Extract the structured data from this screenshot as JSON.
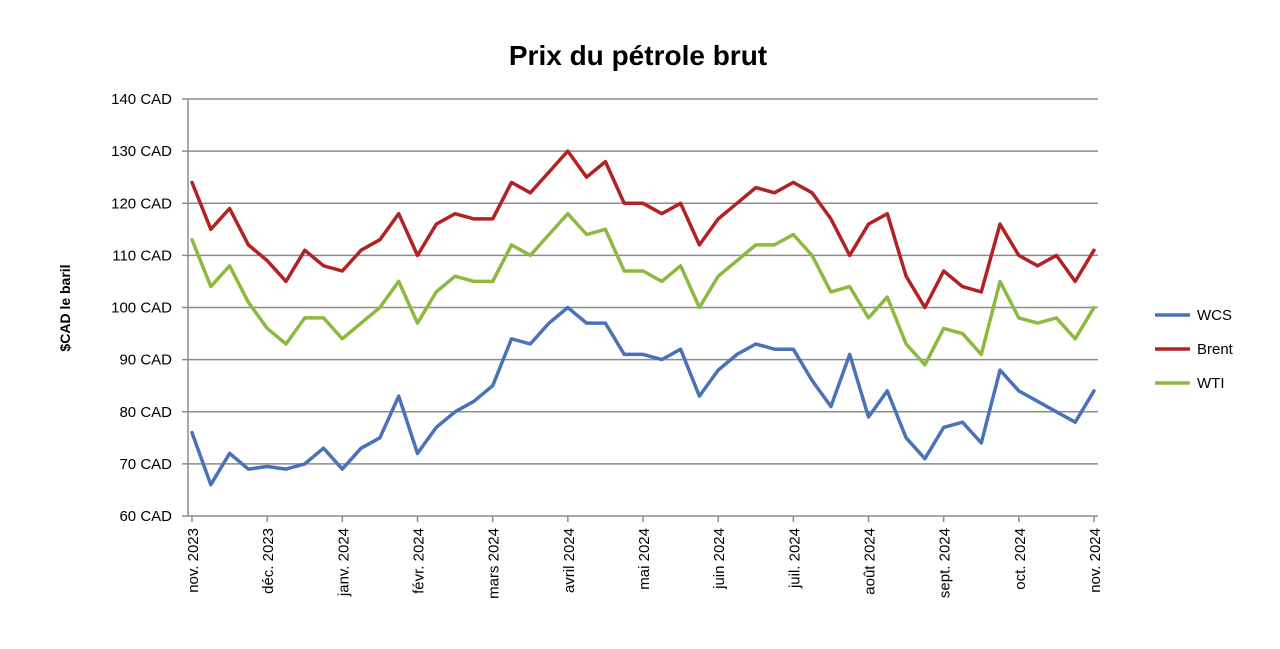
{
  "chart_data": {
    "type": "line",
    "title": "Prix du pétrole brut",
    "ylabel": "$CAD le baril",
    "xlabel": "",
    "ylim": [
      60,
      140
    ],
    "y_ticks": [
      "60 CAD",
      "70 CAD",
      "80 CAD",
      "90 CAD",
      "100 CAD",
      "110 CAD",
      "120 CAD",
      "130 CAD",
      "140 CAD"
    ],
    "y_tick_values": [
      60,
      70,
      80,
      90,
      100,
      110,
      120,
      130,
      140
    ],
    "x_tick_labels": [
      "nov. 2023",
      "déc. 2023",
      "janv. 2024",
      "févr. 2024",
      "mars 2024",
      "avril 2024",
      "mai 2024",
      "juin 2024",
      "juil. 2024",
      "août 2024",
      "sept. 2024",
      "oct. 2024",
      "nov. 2024"
    ],
    "x_tick_values": [
      0,
      1,
      2,
      3,
      4,
      5,
      6,
      7,
      8,
      9,
      10,
      11,
      12
    ],
    "grid": "horizontal",
    "legend_position": "right",
    "series": [
      {
        "name": "WCS",
        "color": "#4a72b8",
        "x": [
          0,
          0.25,
          0.5,
          0.75,
          1,
          1.25,
          1.5,
          1.75,
          2,
          2.25,
          2.5,
          2.75,
          3,
          3.25,
          3.5,
          3.75,
          4,
          4.25,
          4.5,
          4.75,
          5,
          5.25,
          5.5,
          5.75,
          6,
          6.25,
          6.5,
          6.75,
          7,
          7.25,
          7.5,
          7.75,
          8,
          8.25,
          8.5,
          8.75,
          9,
          9.25,
          9.5,
          9.75,
          10,
          10.25,
          10.5,
          10.75,
          11,
          11.25,
          11.5,
          11.75,
          12
        ],
        "values": [
          76,
          66,
          72,
          69,
          69.5,
          69,
          70,
          73,
          69,
          73,
          75,
          83,
          72,
          77,
          80,
          82,
          85,
          94,
          93,
          97,
          100,
          97,
          97,
          91,
          91,
          90,
          92,
          83,
          88,
          91,
          93,
          92,
          92,
          86,
          81,
          91,
          79,
          84,
          75,
          71,
          77,
          78,
          74,
          88,
          84,
          82,
          80,
          78,
          84
        ]
      },
      {
        "name": "Brent",
        "color": "#b22222",
        "x": [
          0,
          0.25,
          0.5,
          0.75,
          1,
          1.25,
          1.5,
          1.75,
          2,
          2.25,
          2.5,
          2.75,
          3,
          3.25,
          3.5,
          3.75,
          4,
          4.25,
          4.5,
          4.75,
          5,
          5.25,
          5.5,
          5.75,
          6,
          6.25,
          6.5,
          6.75,
          7,
          7.25,
          7.5,
          7.75,
          8,
          8.25,
          8.5,
          8.75,
          9,
          9.25,
          9.5,
          9.75,
          10,
          10.25,
          10.5,
          10.75,
          11,
          11.25,
          11.5,
          11.75,
          12
        ],
        "values": [
          124,
          115,
          119,
          112,
          109,
          105,
          111,
          108,
          107,
          111,
          113,
          118,
          110,
          116,
          118,
          117,
          117,
          124,
          122,
          126,
          130,
          125,
          128,
          120,
          120,
          118,
          120,
          112,
          117,
          120,
          123,
          122,
          124,
          122,
          117,
          110,
          116,
          118,
          106,
          100,
          107,
          104,
          103,
          116,
          110,
          108,
          110,
          105,
          111
        ]
      },
      {
        "name": "WTI",
        "color": "#8bba3f",
        "x": [
          0,
          0.25,
          0.5,
          0.75,
          1,
          1.25,
          1.5,
          1.75,
          2,
          2.25,
          2.5,
          2.75,
          3,
          3.25,
          3.5,
          3.75,
          4,
          4.25,
          4.5,
          4.75,
          5,
          5.25,
          5.5,
          5.75,
          6,
          6.25,
          6.5,
          6.75,
          7,
          7.25,
          7.5,
          7.75,
          8,
          8.25,
          8.5,
          8.75,
          9,
          9.25,
          9.5,
          9.75,
          10,
          10.25,
          10.5,
          10.75,
          11,
          11.25,
          11.5,
          11.75,
          12
        ],
        "values": [
          113,
          104,
          108,
          101,
          96,
          93,
          98,
          98,
          94,
          97,
          100,
          105,
          97,
          103,
          106,
          105,
          105,
          112,
          110,
          114,
          118,
          114,
          115,
          107,
          107,
          105,
          108,
          100,
          106,
          109,
          112,
          112,
          114,
          110,
          103,
          104,
          98,
          102,
          93,
          89,
          96,
          95,
          91,
          105,
          98,
          97,
          98,
          94,
          100
        ]
      }
    ]
  }
}
